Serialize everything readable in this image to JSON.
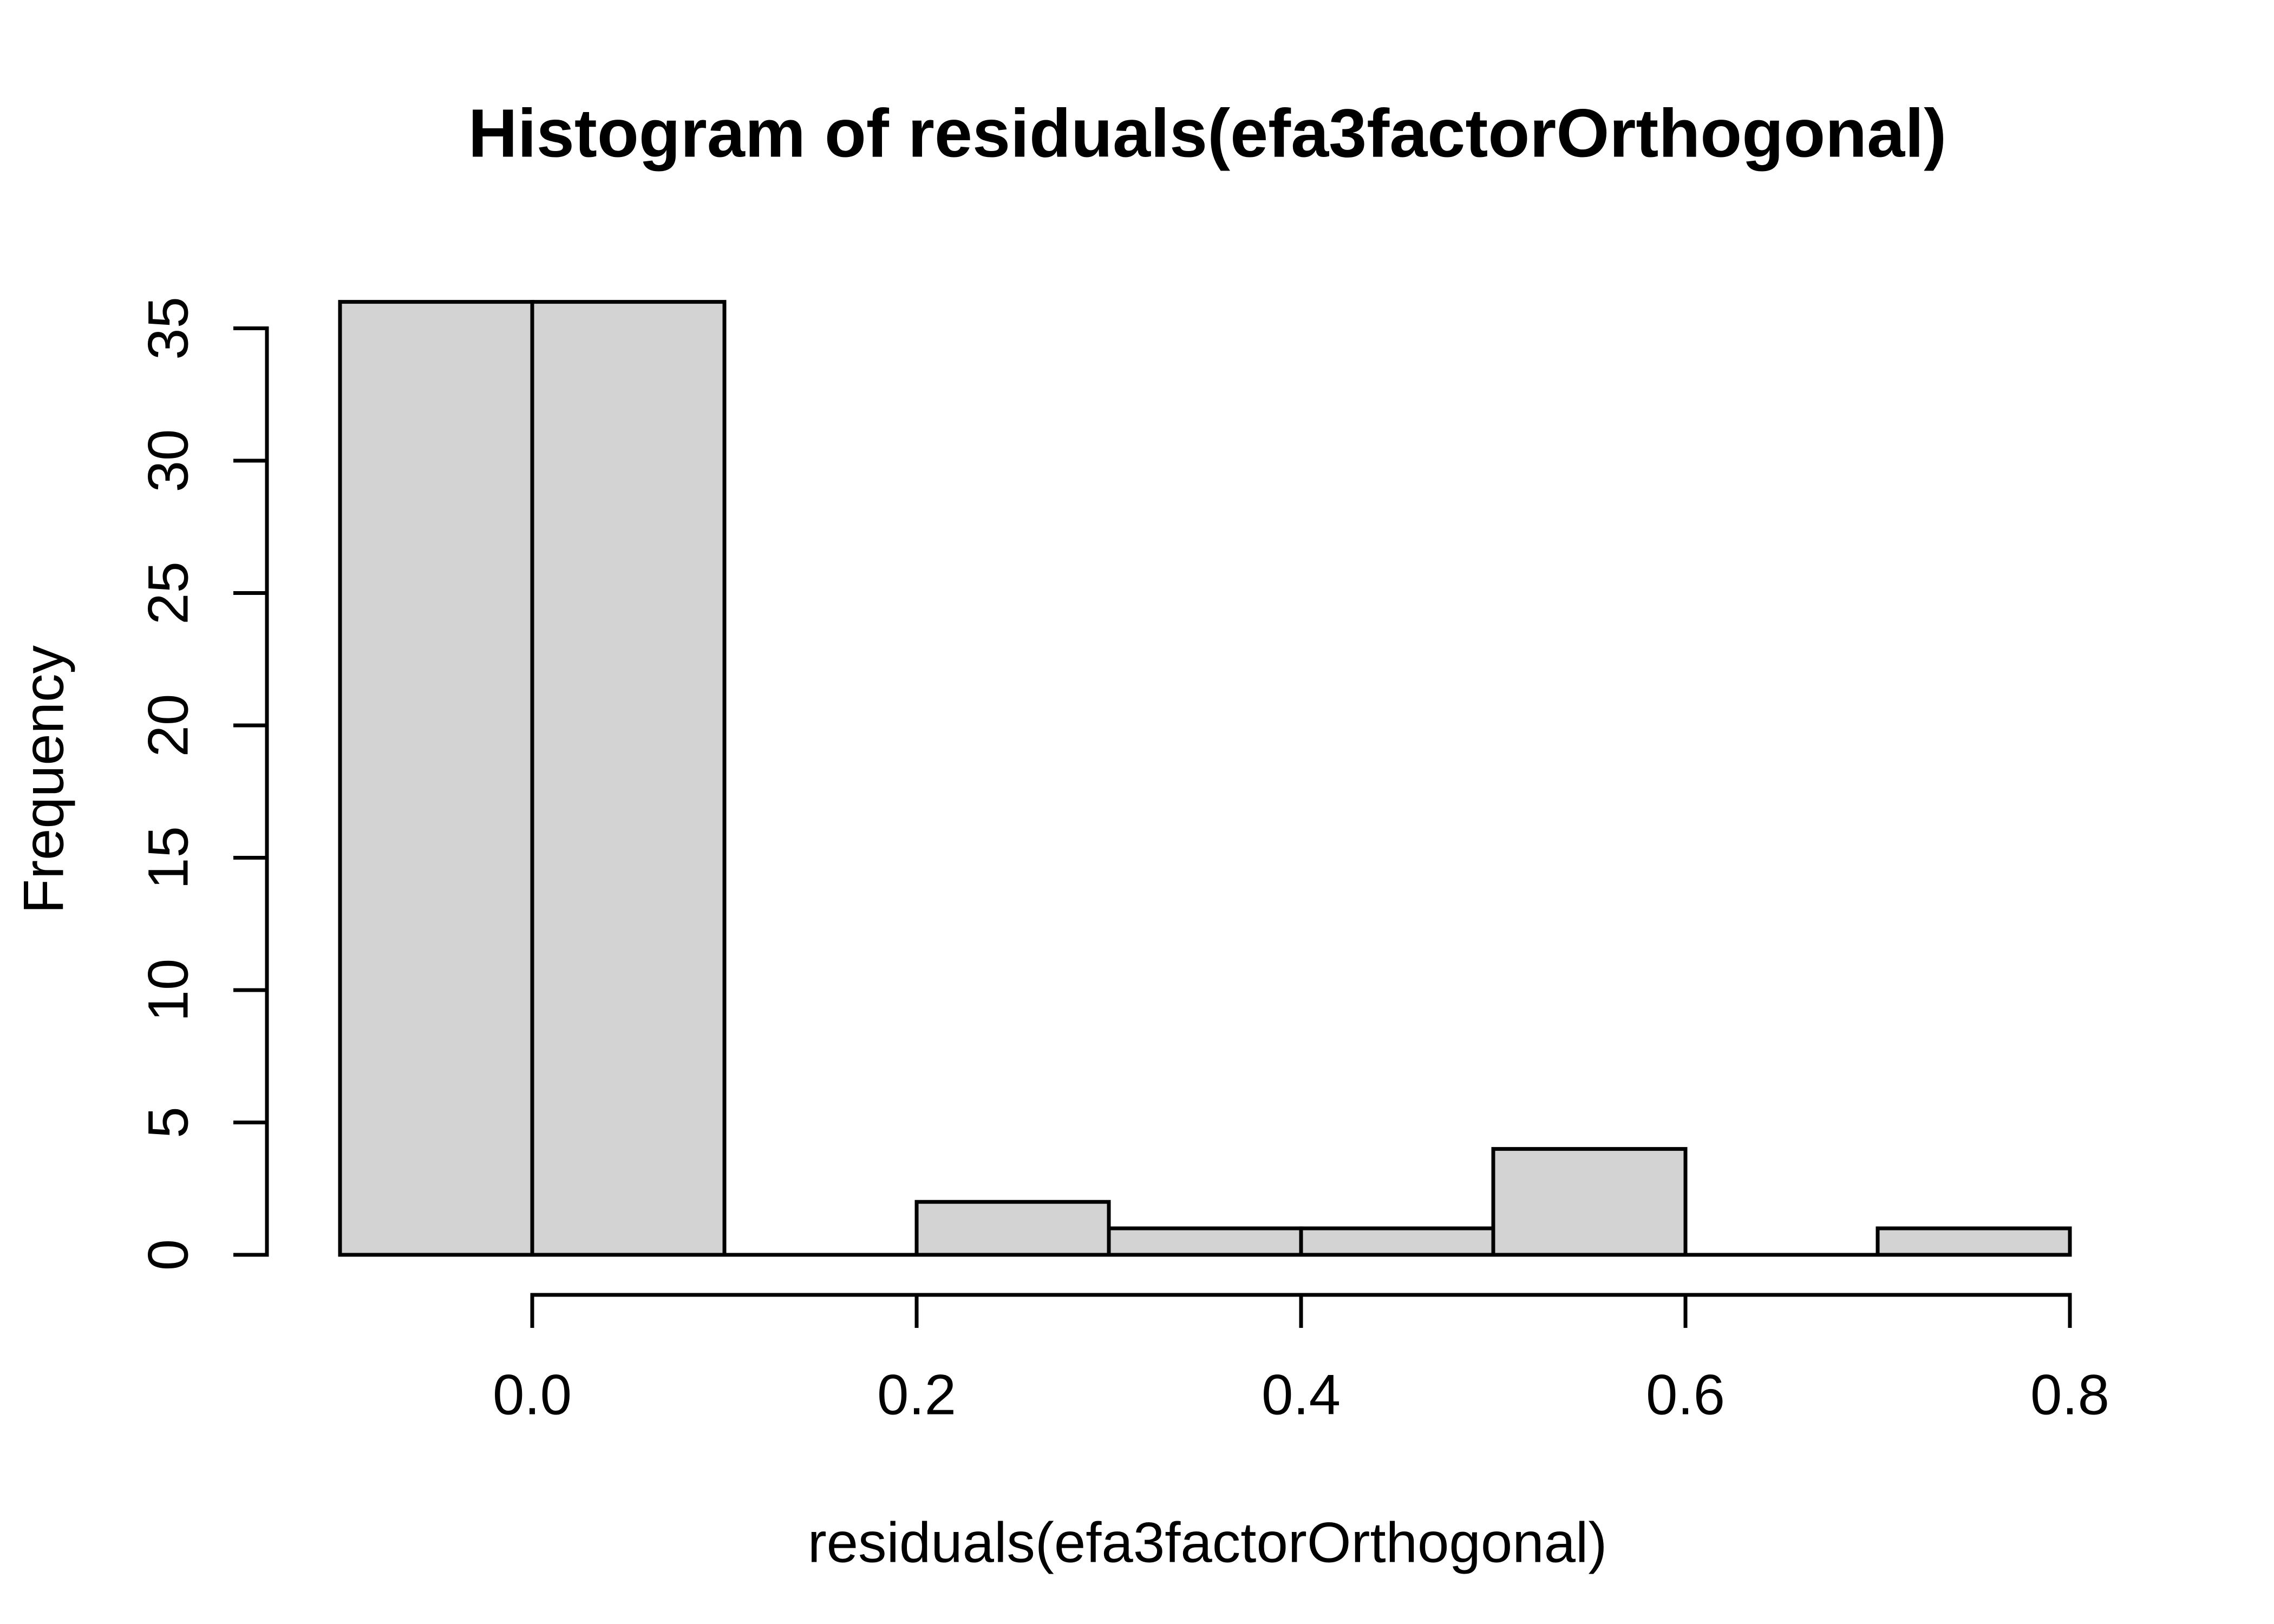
{
  "chart_data": {
    "type": "bar",
    "subtype": "histogram",
    "title": "Histogram of residuals(efa3factorOrthogonal)",
    "xlabel": "residuals(efa3factorOrthogonal)",
    "ylabel": "Frequency",
    "bin_edges": [
      -0.1,
      0.0,
      0.1,
      0.2,
      0.3,
      0.4,
      0.5,
      0.6,
      0.7,
      0.8
    ],
    "counts": [
      36,
      36,
      0,
      2,
      1,
      1,
      4,
      0,
      1
    ],
    "x_ticks": {
      "values": [
        0.0,
        0.2,
        0.4,
        0.6,
        0.8
      ],
      "labels": [
        "0.0",
        "0.2",
        "0.4",
        "0.6",
        "0.8"
      ]
    },
    "y_ticks": {
      "values": [
        0,
        5,
        10,
        15,
        20,
        25,
        30,
        35
      ],
      "labels": [
        "0",
        "5",
        "10",
        "15",
        "20",
        "25",
        "30",
        "35"
      ]
    },
    "xlim": [
      -0.136,
      0.836
    ],
    "ylim": [
      0,
      36
    ],
    "grid": false,
    "legend_position": "none",
    "colors": {
      "bar_fill": "#d3d3d3",
      "bar_stroke": "#000000",
      "axis": "#000000",
      "text": "#000000",
      "background": "#ffffff"
    }
  }
}
